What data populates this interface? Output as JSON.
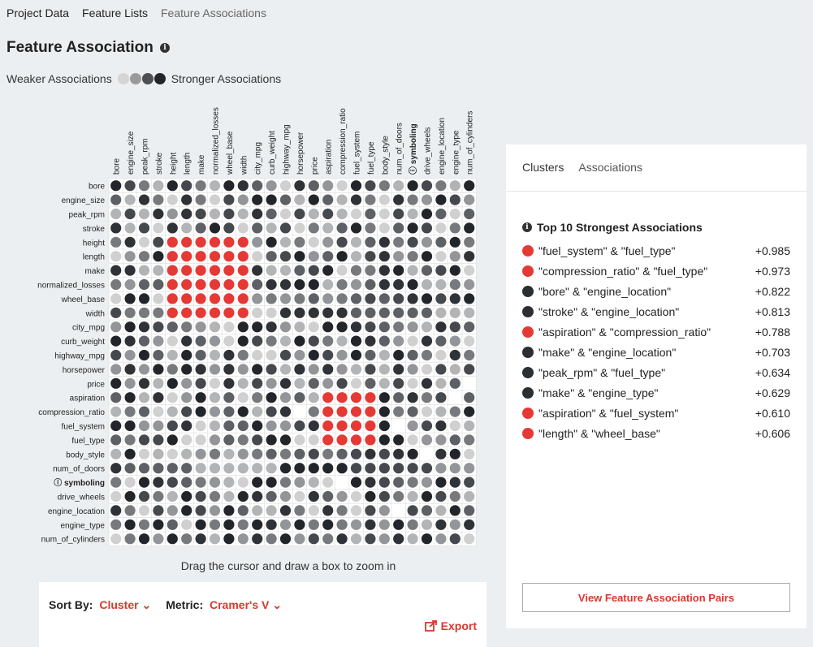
{
  "nav": {
    "items": [
      "Project Data",
      "Feature Lists",
      "Feature Associations"
    ]
  },
  "header": {
    "title": "Feature Association"
  },
  "legend": {
    "weaker": "Weaker Associations",
    "stronger": "Stronger Associations"
  },
  "matrix": {
    "features": [
      "bore",
      "engine_size",
      "peak_rpm",
      "stroke",
      "height",
      "length",
      "make",
      "normalized_losses",
      "wheel_base",
      "width",
      "city_mpg",
      "curb_weight",
      "highway_mpg",
      "horsepower",
      "price",
      "aspiration",
      "compression_ratio",
      "fuel_system",
      "fuel_type",
      "body_style",
      "num_of_doors",
      "symboling",
      "drive_wheels",
      "engine_location",
      "engine_type",
      "num_of_cylinders"
    ],
    "highlighted_feature": "symboling",
    "clusters": [
      {
        "features": [
          "height",
          "length",
          "make",
          "normalized_losses",
          "wheel_base",
          "width"
        ],
        "color": "#e53935"
      },
      {
        "features": [
          "aspiration",
          "compression_ratio",
          "fuel_system",
          "fuel_type"
        ],
        "color": "#e53935"
      }
    ]
  },
  "zoom_hint": "Drag the cursor and draw a box to zoom in",
  "controls": {
    "sort_label": "Sort By:",
    "sort_value": "Cluster",
    "metric_label": "Metric:",
    "metric_value": "Cramer's V",
    "export_label": "Export"
  },
  "panel": {
    "tabs": [
      "Clusters",
      "Associations"
    ],
    "top_title": "Top 10 Strongest Associations",
    "associations": [
      {
        "label": "\"fuel_system\" & \"fuel_type\"",
        "value": "+0.985",
        "color": "#e53935"
      },
      {
        "label": "\"compression_ratio\" & \"fuel_type\"",
        "value": "+0.973",
        "color": "#e53935"
      },
      {
        "label": "\"bore\" & \"engine_location\"",
        "value": "+0.822",
        "color": "#2b2f33"
      },
      {
        "label": "\"stroke\" & \"engine_location\"",
        "value": "+0.813",
        "color": "#2b2f33"
      },
      {
        "label": "\"aspiration\" & \"compression_ratio\"",
        "value": "+0.788",
        "color": "#e53935"
      },
      {
        "label": "\"make\" & \"engine_location\"",
        "value": "+0.703",
        "color": "#2b2f33"
      },
      {
        "label": "\"peak_rpm\" & \"fuel_type\"",
        "value": "+0.634",
        "color": "#2b2f33"
      },
      {
        "label": "\"make\" & \"engine_type\"",
        "value": "+0.629",
        "color": "#2b2f33"
      },
      {
        "label": "\"aspiration\" & \"fuel_system\"",
        "value": "+0.610",
        "color": "#e53935"
      },
      {
        "label": "\"length\" & \"wheel_base\"",
        "value": "+0.606",
        "color": "#e53935"
      }
    ],
    "view_button": "View Feature Association Pairs"
  }
}
